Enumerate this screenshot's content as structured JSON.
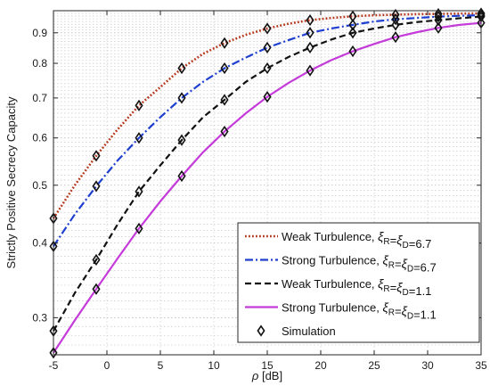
{
  "chart_data": {
    "type": "line",
    "xlabel_symbol": "ρ",
    "xlabel_unit": "[dB]",
    "ylabel": "Strictly Positive Secrecy Capacity",
    "xlim": [
      -5,
      35
    ],
    "ylim": [
      0.26,
      0.98
    ],
    "yscale": "log",
    "grid": true,
    "legend_position": "bottom-right",
    "x_ticks": [
      -5,
      0,
      5,
      10,
      15,
      20,
      25,
      30,
      35
    ],
    "y_ticks": [
      0.3,
      0.4,
      0.5,
      0.6,
      0.7,
      0.8,
      0.9
    ],
    "y_tick_labels": [
      "0.3",
      "0.4",
      "0.5",
      "0.6",
      "0.7",
      "0.8",
      "0.9"
    ],
    "x_sim": [
      -5,
      -1,
      3,
      7,
      11,
      15,
      19,
      23,
      27,
      31,
      35
    ],
    "series": [
      {
        "name_prefix": "Weak Turbulence, ",
        "xi_values": "6.7",
        "color": "#b5361b",
        "style": "dotted",
        "x": [
          -5,
          -3,
          -1,
          1,
          3,
          5,
          7,
          9,
          11,
          13,
          15,
          17,
          19,
          21,
          23,
          25,
          27,
          29,
          31,
          33,
          35
        ],
        "y": [
          0.44,
          0.5,
          0.56,
          0.62,
          0.68,
          0.73,
          0.785,
          0.83,
          0.865,
          0.893,
          0.915,
          0.932,
          0.945,
          0.953,
          0.959,
          0.963,
          0.965,
          0.967,
          0.968,
          0.969,
          0.97
        ],
        "sim_y": [
          0.44,
          0.56,
          0.68,
          0.785,
          0.865,
          0.915,
          0.945,
          0.959,
          0.965,
          0.968,
          0.97
        ]
      },
      {
        "name_prefix": "Strong Turbulence, ",
        "xi_values": "6.7",
        "color": "#1f3fd1",
        "style": "dashdot",
        "x": [
          -5,
          -3,
          -1,
          1,
          3,
          5,
          7,
          9,
          11,
          13,
          15,
          17,
          19,
          21,
          23,
          25,
          27,
          29,
          31,
          33,
          35
        ],
        "y": [
          0.395,
          0.447,
          0.498,
          0.55,
          0.6,
          0.65,
          0.7,
          0.745,
          0.785,
          0.818,
          0.85,
          0.875,
          0.9,
          0.915,
          0.928,
          0.94,
          0.948,
          0.953,
          0.958,
          0.961,
          0.963
        ],
        "sim_y": [
          0.395,
          0.498,
          0.6,
          0.7,
          0.785,
          0.85,
          0.9,
          0.928,
          0.948,
          0.958,
          0.963
        ]
      },
      {
        "name_prefix": "Weak Turbulence, ",
        "xi_values": "1.1",
        "color": "#111111",
        "style": "dashed",
        "x": [
          -5,
          -3,
          -1,
          1,
          3,
          5,
          7,
          9,
          11,
          13,
          15,
          17,
          19,
          21,
          23,
          25,
          27,
          29,
          31,
          33,
          35
        ],
        "y": [
          0.285,
          0.33,
          0.375,
          0.43,
          0.488,
          0.54,
          0.595,
          0.65,
          0.695,
          0.745,
          0.785,
          0.82,
          0.85,
          0.877,
          0.9,
          0.915,
          0.928,
          0.938,
          0.945,
          0.952,
          0.958
        ],
        "sim_y": [
          0.285,
          0.375,
          0.488,
          0.595,
          0.695,
          0.785,
          0.85,
          0.9,
          0.928,
          0.945,
          0.958
        ]
      },
      {
        "name_prefix": "Strong Turbulence, ",
        "xi_values": "1.1",
        "color": "#c43bd9",
        "style": "solid",
        "x": [
          -5,
          -3,
          -1,
          1,
          3,
          5,
          7,
          9,
          11,
          13,
          15,
          17,
          19,
          21,
          23,
          25,
          27,
          29,
          31,
          33,
          35
        ],
        "y": [
          0.262,
          0.297,
          0.335,
          0.377,
          0.423,
          0.47,
          0.518,
          0.568,
          0.615,
          0.66,
          0.703,
          0.742,
          0.778,
          0.81,
          0.838,
          0.862,
          0.885,
          0.902,
          0.917,
          0.928,
          0.935
        ],
        "sim_y": [
          0.262,
          0.335,
          0.423,
          0.518,
          0.615,
          0.703,
          0.778,
          0.838,
          0.885,
          0.917,
          0.935
        ]
      }
    ],
    "simulation_label": "Simulation",
    "legend_subscript_r": "R",
    "legend_subscript_d": "D",
    "legend_xi": "ξ"
  }
}
